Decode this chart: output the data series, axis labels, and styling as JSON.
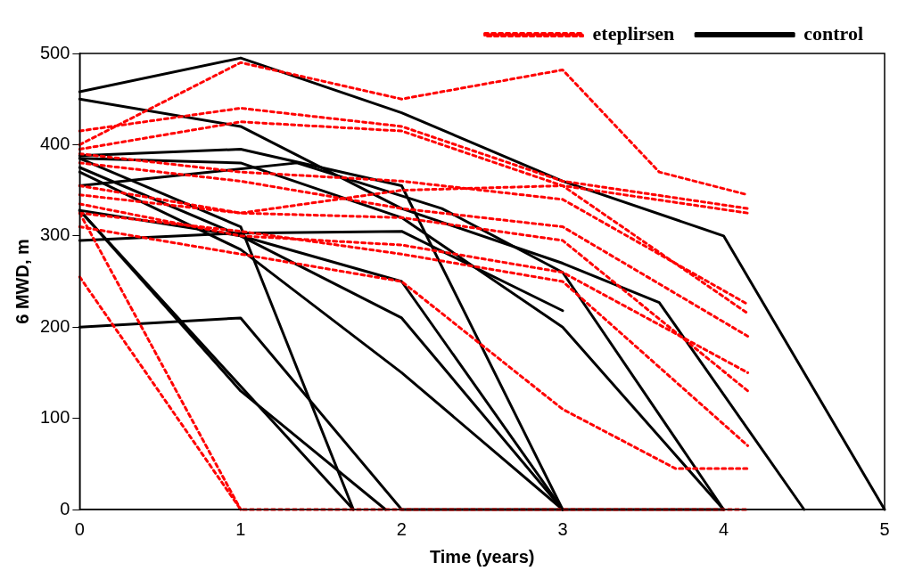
{
  "chart_data": {
    "type": "line",
    "xlabel": "Time (years)",
    "ylabel": "6 MWD, m",
    "xlim": [
      0,
      5
    ],
    "xticks": [
      0,
      1,
      2,
      3,
      4,
      5
    ],
    "ylim": [
      0,
      500
    ],
    "yticks": [
      0,
      100,
      200,
      300,
      400,
      500
    ],
    "grid": false,
    "legend": "top right",
    "marker": "none",
    "series": [
      {
        "name": "eteplirsen",
        "color": "#ff0000",
        "line_style": "dashed",
        "x": [
          0,
          1,
          2,
          3,
          3.6,
          4.15
        ],
        "values": [
          400,
          490,
          450,
          482,
          370,
          345
        ]
      },
      {
        "color": "#ff0000",
        "line_style": "dashed",
        "x": [
          0,
          1,
          2,
          3,
          4.15
        ],
        "values": [
          415,
          440,
          420,
          360,
          330
        ]
      },
      {
        "color": "#ff0000",
        "line_style": "dashed",
        "x": [
          0,
          1,
          2,
          3,
          4.15
        ],
        "values": [
          395,
          425,
          415,
          355,
          325
        ]
      },
      {
        "color": "#ff0000",
        "line_style": "dashed",
        "x": [
          0,
          1,
          2,
          3,
          4.15
        ],
        "values": [
          390,
          370,
          360,
          340,
          225
        ]
      },
      {
        "color": "#ff0000",
        "line_style": "dashed",
        "x": [
          0,
          1,
          2,
          3,
          4.15
        ],
        "values": [
          380,
          360,
          330,
          310,
          190
        ]
      },
      {
        "color": "#ff0000",
        "line_style": "dashed",
        "x": [
          0,
          1,
          2,
          3,
          4.15
        ],
        "values": [
          355,
          325,
          350,
          355,
          215
        ]
      },
      {
        "color": "#ff0000",
        "line_style": "dashed",
        "x": [
          0,
          1,
          2,
          3,
          4.15
        ],
        "values": [
          345,
          325,
          320,
          295,
          130
        ]
      },
      {
        "color": "#ff0000",
        "line_style": "dashed",
        "x": [
          0,
          1,
          2,
          3,
          4.15
        ],
        "values": [
          335,
          300,
          290,
          260,
          150
        ]
      },
      {
        "color": "#ff0000",
        "line_style": "dashed",
        "x": [
          0,
          1,
          2,
          3,
          4.15
        ],
        "values": [
          325,
          305,
          280,
          250,
          70
        ]
      },
      {
        "color": "#ff0000",
        "line_style": "dashed",
        "x": [
          0,
          1,
          2,
          3,
          3.7,
          4.15
        ],
        "values": [
          310,
          280,
          250,
          110,
          45,
          45
        ]
      },
      {
        "color": "#ff0000",
        "line_style": "dashed",
        "x": [
          0,
          1,
          4.15
        ],
        "values": [
          255,
          0,
          0
        ]
      },
      {
        "color": "#ff0000",
        "line_style": "dashed",
        "x": [
          0,
          1
        ],
        "values": [
          325,
          0
        ]
      },
      {
        "name": "control",
        "color": "#000000",
        "line_style": "solid",
        "x": [
          0,
          1,
          2,
          3,
          4,
          5
        ],
        "values": [
          458,
          495,
          435,
          360,
          300,
          0
        ]
      },
      {
        "color": "#000000",
        "line_style": "solid",
        "x": [
          0,
          1,
          2,
          3,
          3.6,
          4.5
        ],
        "values": [
          450,
          420,
          330,
          270,
          227,
          0
        ]
      },
      {
        "color": "#000000",
        "line_style": "solid",
        "x": [
          0,
          1,
          2,
          3
        ],
        "values": [
          388,
          395,
          355,
          0
        ]
      },
      {
        "color": "#000000",
        "line_style": "solid",
        "x": [
          0,
          1.35,
          2.25,
          3,
          4
        ],
        "values": [
          355,
          380,
          330,
          260,
          0
        ]
      },
      {
        "color": "#000000",
        "line_style": "solid",
        "x": [
          0,
          1,
          2,
          3,
          4
        ],
        "values": [
          385,
          380,
          320,
          200,
          0
        ]
      },
      {
        "color": "#000000",
        "line_style": "solid",
        "x": [
          0,
          1.7
        ],
        "values": [
          328,
          0
        ]
      },
      {
        "color": "#000000",
        "line_style": "solid",
        "x": [
          0,
          1,
          2,
          3,
          4
        ],
        "values": [
          200,
          210,
          0,
          0,
          0
        ]
      },
      {
        "color": "#000000",
        "line_style": "solid",
        "x": [
          0,
          1,
          2,
          3
        ],
        "values": [
          295,
          303,
          305,
          218
        ]
      },
      {
        "color": "#000000",
        "line_style": "solid",
        "x": [
          0,
          1,
          2,
          3
        ],
        "values": [
          328,
          300,
          250,
          0
        ]
      },
      {
        "color": "#000000",
        "line_style": "solid",
        "x": [
          0,
          1,
          2,
          3
        ],
        "values": [
          375,
          300,
          210,
          0
        ]
      },
      {
        "color": "#000000",
        "line_style": "solid",
        "x": [
          0,
          1,
          2,
          3
        ],
        "values": [
          370,
          285,
          150,
          0
        ]
      },
      {
        "color": "#000000",
        "line_style": "solid",
        "x": [
          0,
          1,
          1.9
        ],
        "values": [
          328,
          130,
          0
        ]
      },
      {
        "color": "#000000",
        "line_style": "solid",
        "x": [
          0,
          1,
          1.7
        ],
        "values": [
          385,
          310,
          0
        ]
      }
    ]
  }
}
